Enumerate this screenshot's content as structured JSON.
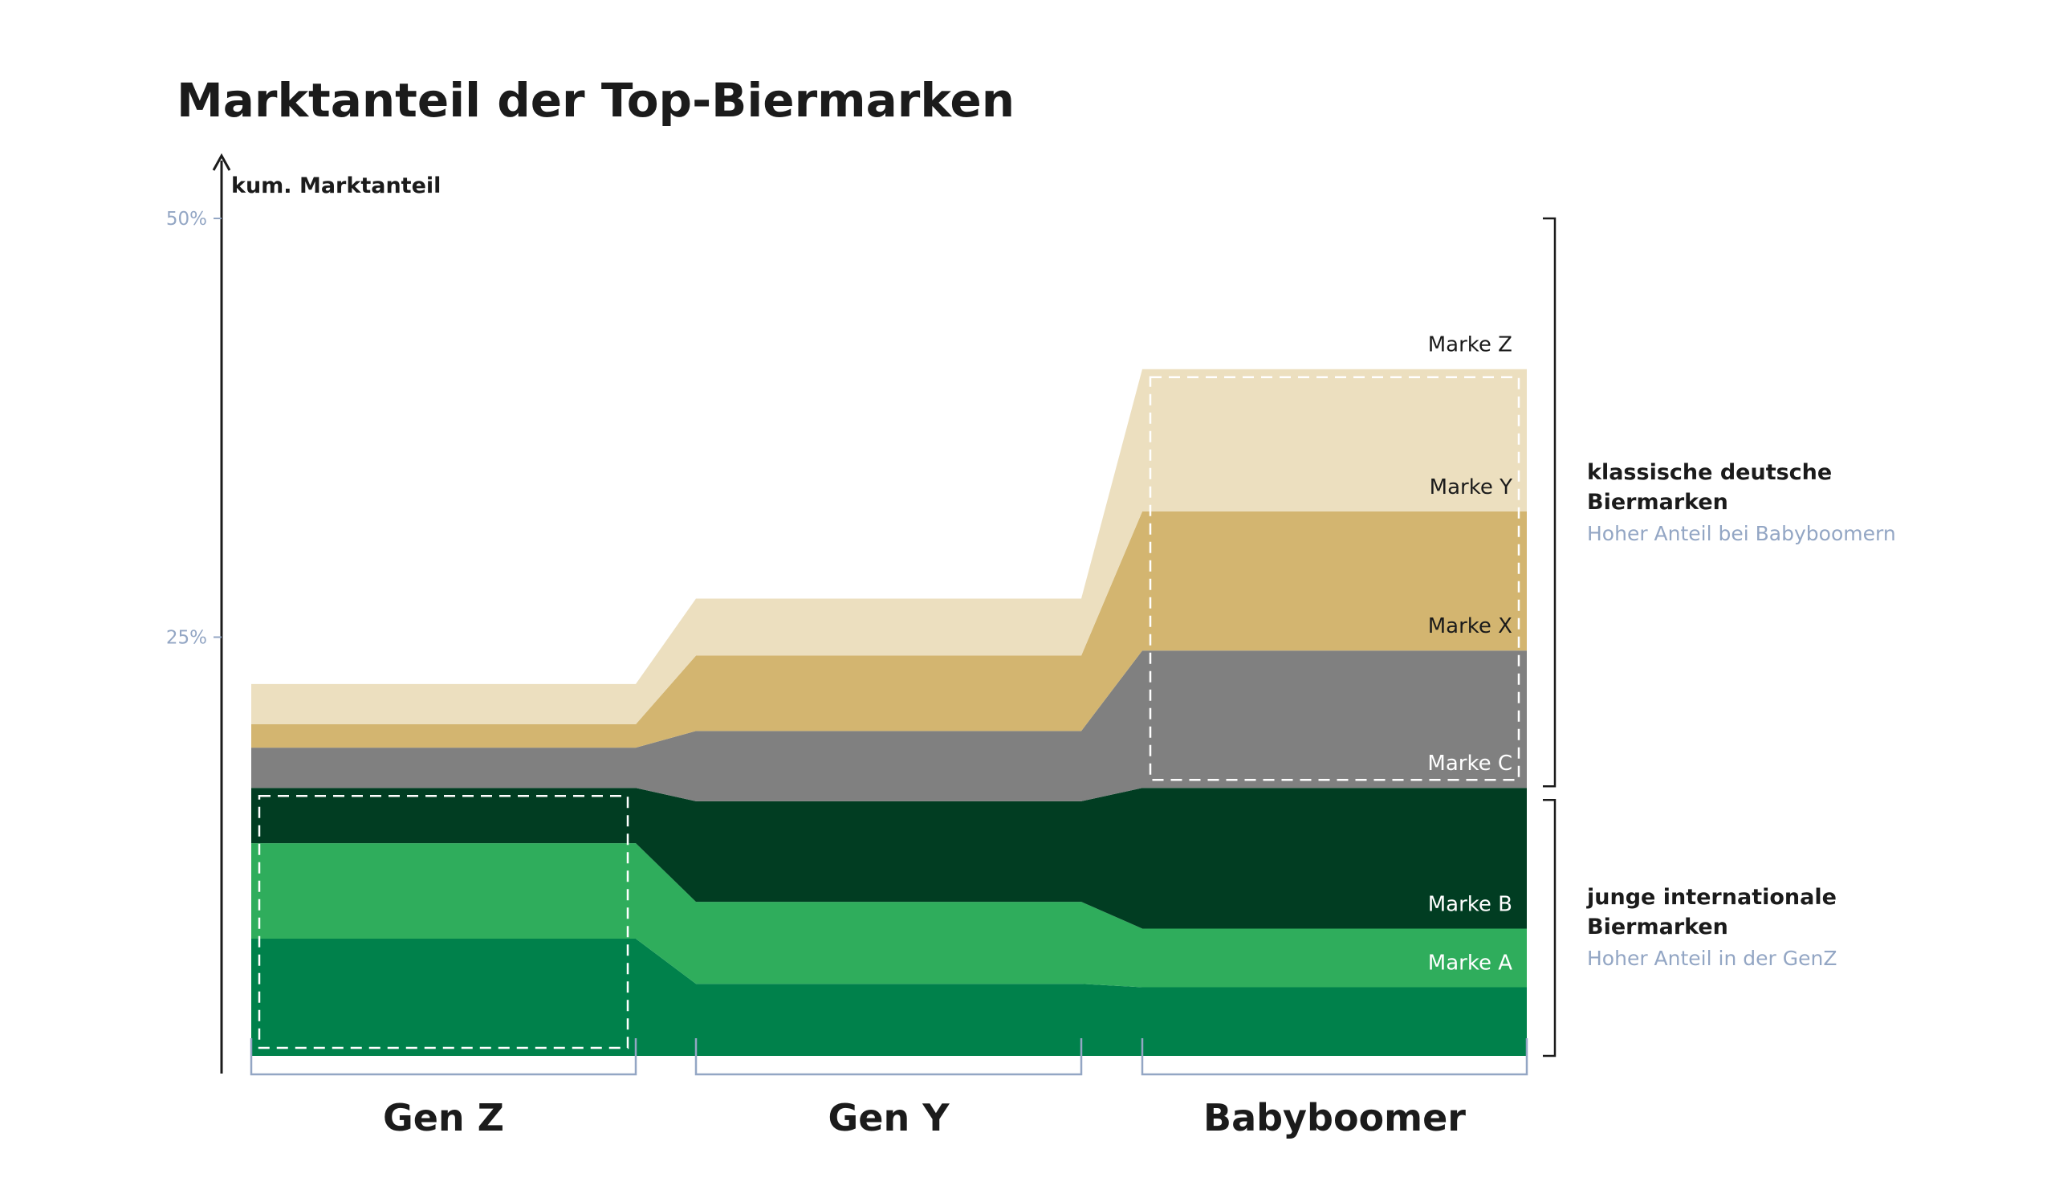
{
  "chart_data": {
    "type": "area",
    "title": "Marktanteil der Top-Biermarken",
    "ylabel": "kum. Marktanteil",
    "ylim": [
      0,
      50
    ],
    "yticks": [
      {
        "value": 25,
        "label": "25%"
      },
      {
        "value": 50,
        "label": "50%"
      }
    ],
    "categories": [
      "Gen Z",
      "Gen Y",
      "Babyboomer"
    ],
    "series": [
      {
        "name": "Marke A",
        "values": [
          7,
          4.3,
          4.1
        ],
        "color": "#00814b",
        "label_color": "#ffffff"
      },
      {
        "name": "Marke B",
        "values": [
          5.7,
          4.9,
          3.5
        ],
        "color": "#2fad5c",
        "label_color": "#ffffff"
      },
      {
        "name": "Marke C",
        "values": [
          3.3,
          6.0,
          8.4
        ],
        "color": "#013d22",
        "label_color": "#ffffff"
      },
      {
        "name": "Marke X",
        "values": [
          2.4,
          4.2,
          8.2
        ],
        "color": "#808080",
        "label_color": "#1b1b1b"
      },
      {
        "name": "Marke Y",
        "values": [
          1.4,
          4.5,
          8.3
        ],
        "color": "#d3b570",
        "label_color": "#1b1b1b"
      },
      {
        "name": "Marke Z",
        "values": [
          2.4,
          3.4,
          8.5
        ],
        "color": "#ecdfbf",
        "label_color": "#1b1b1b"
      }
    ],
    "groups": [
      {
        "title_lines": [
          "klassische deutsche",
          "Biermarken"
        ],
        "subtitle": "Hoher Anteil bei Babyboomern",
        "series": [
          "Marke X",
          "Marke Y",
          "Marke Z"
        ]
      },
      {
        "title_lines": [
          "junge internationale",
          "Biermarken"
        ],
        "subtitle": "Hoher Anteil in der GenZ",
        "series": [
          "Marke A",
          "Marke B",
          "Marke C"
        ]
      }
    ],
    "highlights": [
      {
        "category": "Gen Z",
        "series": [
          "Marke A",
          "Marke B",
          "Marke C"
        ]
      },
      {
        "category": "Babyboomer",
        "series": [
          "Marke X",
          "Marke Y",
          "Marke Z"
        ]
      }
    ]
  }
}
